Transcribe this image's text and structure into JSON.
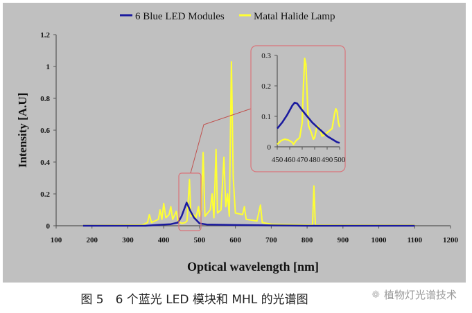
{
  "chart_data": {
    "type": "line",
    "title": "",
    "xlabel": "Optical wavelength [nm]",
    "ylabel": "Intensity [A.U]",
    "xlim": [
      100,
      1200
    ],
    "ylim": [
      0,
      1.2
    ],
    "xticks": [
      "100",
      "200",
      "300",
      "400",
      "500",
      "600",
      "700",
      "800",
      "900",
      "1000",
      "1100",
      "1200"
    ],
    "yticks": [
      "0",
      "0.2",
      "0.4",
      "0.6",
      "0.8",
      "1",
      "1.2"
    ],
    "grid": false,
    "legend_position": "top",
    "legend": [
      "6 Blue LED Modules",
      "Matal Halide Lamp"
    ],
    "series": [
      {
        "name": "6 Blue LED Modules",
        "color": "#1a1a9e",
        "points": [
          [
            175,
            0
          ],
          [
            350,
            0
          ],
          [
            380,
            0.005
          ],
          [
            420,
            0.01
          ],
          [
            440,
            0.02
          ],
          [
            450,
            0.06
          ],
          [
            464,
            0.145
          ],
          [
            475,
            0.09
          ],
          [
            485,
            0.05
          ],
          [
            500,
            0.015
          ],
          [
            520,
            0.008
          ],
          [
            600,
            0.005
          ],
          [
            700,
            0.002
          ],
          [
            800,
            0
          ],
          [
            1100,
            0
          ]
        ]
      },
      {
        "name": "Matal Halide Lamp",
        "color": "#ffff33",
        "points": [
          [
            175,
            0.002
          ],
          [
            340,
            0.005
          ],
          [
            355,
            0.02
          ],
          [
            360,
            0.07
          ],
          [
            366,
            0.02
          ],
          [
            385,
            0.04
          ],
          [
            390,
            0.1
          ],
          [
            395,
            0.04
          ],
          [
            400,
            0.14
          ],
          [
            406,
            0.05
          ],
          [
            415,
            0.07
          ],
          [
            420,
            0.12
          ],
          [
            425,
            0.04
          ],
          [
            435,
            0.09
          ],
          [
            440,
            0.03
          ],
          [
            450,
            0.015
          ],
          [
            460,
            0.02
          ],
          [
            465,
            0.03
          ],
          [
            472,
            0.29
          ],
          [
            476,
            0.06
          ],
          [
            483,
            0.07
          ],
          [
            490,
            0.05
          ],
          [
            497,
            0.12
          ],
          [
            500,
            0.06
          ],
          [
            505,
            0.1
          ],
          [
            510,
            0.46
          ],
          [
            515,
            0.06
          ],
          [
            530,
            0.1
          ],
          [
            535,
            0.2
          ],
          [
            540,
            0.05
          ],
          [
            546,
            0.48
          ],
          [
            550,
            0.08
          ],
          [
            560,
            0.1
          ],
          [
            568,
            0.43
          ],
          [
            573,
            0.12
          ],
          [
            578,
            0.2
          ],
          [
            583,
            0.06
          ],
          [
            589,
            1.03
          ],
          [
            594,
            0.3
          ],
          [
            600,
            0.08
          ],
          [
            620,
            0.07
          ],
          [
            625,
            0.12
          ],
          [
            630,
            0.04
          ],
          [
            660,
            0.03
          ],
          [
            670,
            0.13
          ],
          [
            675,
            0.02
          ],
          [
            700,
            0.01
          ],
          [
            800,
            0.005
          ],
          [
            815,
            0.005
          ],
          [
            819,
            0.25
          ],
          [
            823,
            0.005
          ],
          [
            900,
            0.004
          ],
          [
            1100,
            0.003
          ]
        ]
      }
    ],
    "annotations": [
      {
        "type": "highlight_box",
        "x_range": [
          450,
          500
        ]
      },
      {
        "type": "inset",
        "title": "",
        "xlim": [
          450,
          500
        ],
        "ylim": [
          0,
          0.3
        ],
        "xticks": [
          "450",
          "460",
          "470",
          "480",
          "490",
          "500"
        ],
        "yticks": [
          "0",
          "0.1",
          "0.2",
          "0.3"
        ],
        "series": [
          {
            "name": "6 Blue LED Modules",
            "points": [
              [
                450,
                0.06
              ],
              [
                454,
                0.08
              ],
              [
                458,
                0.105
              ],
              [
                462,
                0.135
              ],
              [
                464,
                0.145
              ],
              [
                466,
                0.142
              ],
              [
                470,
                0.12
              ],
              [
                474,
                0.1
              ],
              [
                478,
                0.08
              ],
              [
                482,
                0.065
              ],
              [
                486,
                0.05
              ],
              [
                490,
                0.035
              ],
              [
                494,
                0.025
              ],
              [
                498,
                0.015
              ],
              [
                500,
                0.013
              ]
            ]
          },
          {
            "name": "Matal Halide Lamp",
            "points": [
              [
                450,
                0.008
              ],
              [
                453,
                0.02
              ],
              [
                456,
                0.025
              ],
              [
                459,
                0.022
              ],
              [
                462,
                0.015
              ],
              [
                463,
                0.008
              ],
              [
                465,
                0.02
              ],
              [
                468,
                0.03
              ],
              [
                470,
                0.08
              ],
              [
                471,
                0.2
              ],
              [
                472,
                0.29
              ],
              [
                473,
                0.27
              ],
              [
                474,
                0.17
              ],
              [
                475,
                0.07
              ],
              [
                477,
                0.05
              ],
              [
                479,
                0.025
              ],
              [
                480,
                0.03
              ],
              [
                482,
                0.07
              ],
              [
                484,
                0.06
              ],
              [
                486,
                0.035
              ],
              [
                488,
                0.04
              ],
              [
                491,
                0.05
              ],
              [
                494,
                0.06
              ],
              [
                496,
                0.11
              ],
              [
                497,
                0.125
              ],
              [
                498,
                0.115
              ],
              [
                499,
                0.08
              ],
              [
                500,
                0.065
              ]
            ]
          }
        ]
      }
    ]
  },
  "caption": "图 5　6 个蓝光 LED 模块和 MHL 的光谱图",
  "watermark": {
    "icon": "wechat-icon",
    "text": "植物灯光谱技术"
  }
}
